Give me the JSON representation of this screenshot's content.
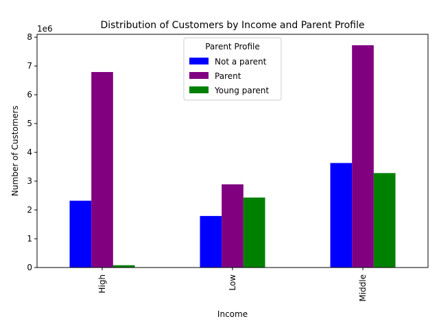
{
  "chart_data": {
    "type": "bar",
    "title": "Distribution of Customers by Income and Parent Profile",
    "xlabel": "Income",
    "ylabel": "Number of Customers",
    "y_multiplier_label": "1e6",
    "categories": [
      "High",
      "Low",
      "Middle"
    ],
    "ylim": [
      0,
      8.1
    ],
    "yticks": [
      "0",
      "1",
      "2",
      "3",
      "4",
      "5",
      "6",
      "7",
      "8"
    ],
    "ytick_values": [
      0,
      1,
      2,
      3,
      4,
      5,
      6,
      7,
      8
    ],
    "value_scale": 1000000,
    "legend": {
      "title": "Parent Profile",
      "placement": "upper center"
    },
    "grid": false,
    "series": [
      {
        "name": "Not a parent",
        "color": "#0000ff",
        "values": [
          2.32,
          1.79,
          3.63
        ]
      },
      {
        "name": "Parent",
        "color": "#800080",
        "values": [
          6.79,
          2.89,
          7.72
        ]
      },
      {
        "name": "Young parent",
        "color": "#008000",
        "values": [
          0.08,
          2.43,
          3.28
        ]
      }
    ]
  }
}
